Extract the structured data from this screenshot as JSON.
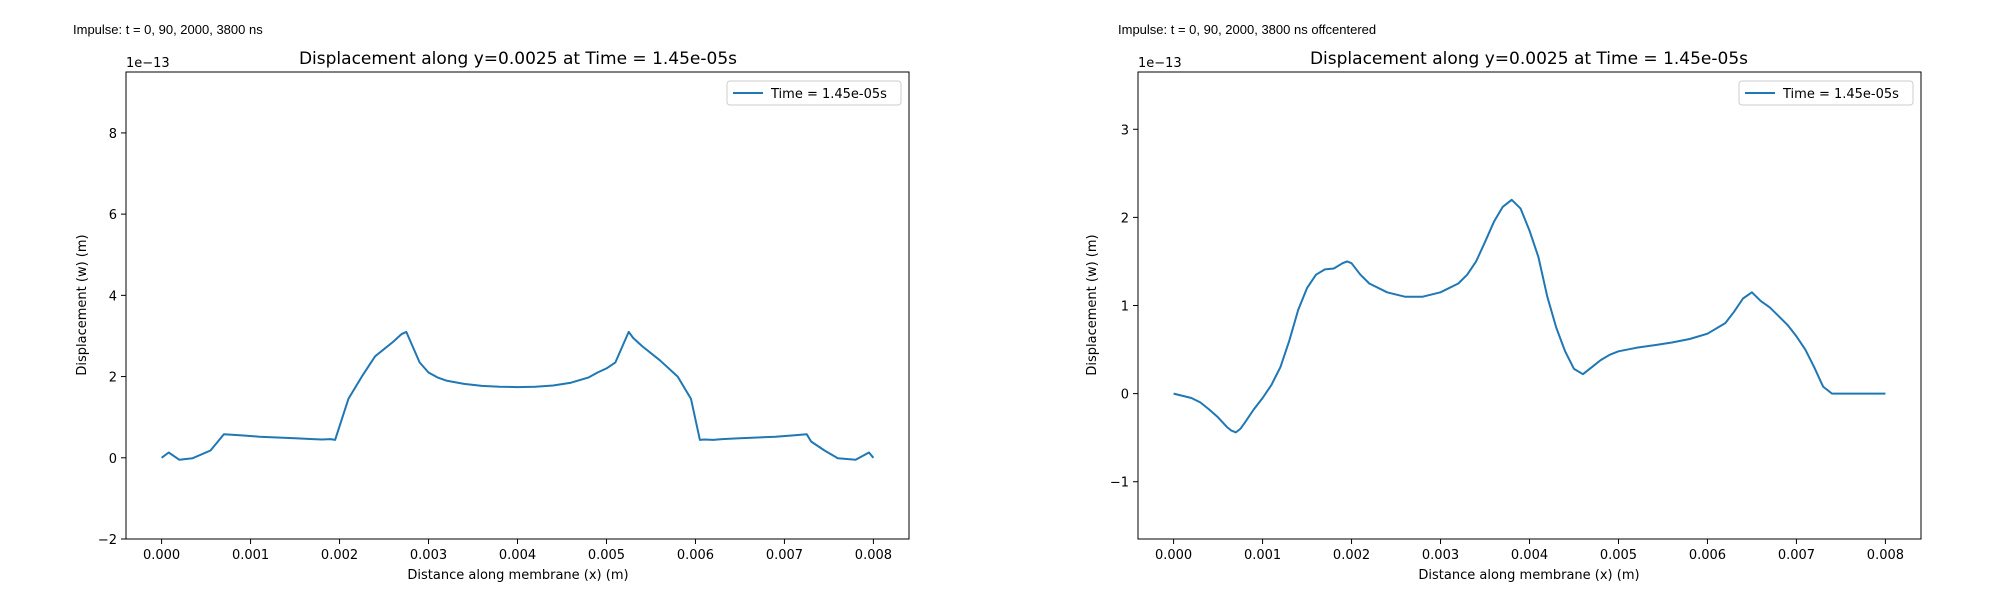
{
  "figure": {
    "panels": [
      {
        "annotation": "Impulse: t = 0, 90, 2000, 3800 ns",
        "tick_labels_x": [
          "0.000",
          "0.001",
          "0.002",
          "0.003",
          "0.004",
          "0.005",
          "0.006",
          "0.007",
          "0.008"
        ],
        "tick_labels_y": [
          "−2",
          "0",
          "2",
          "4",
          "6",
          "8"
        ],
        "offset_label": "1e−13"
      },
      {
        "annotation": "Impulse: t = 0, 90, 2000, 3800 ns offcentered",
        "tick_labels_x": [
          "0.000",
          "0.001",
          "0.002",
          "0.003",
          "0.004",
          "0.005",
          "0.006",
          "0.007",
          "0.008"
        ],
        "tick_labels_y": [
          "−1",
          "0",
          "1",
          "2",
          "3"
        ],
        "offset_label": "1e−13"
      }
    ]
  },
  "chart_data": [
    {
      "type": "line",
      "title": "Displacement along y=0.0025 at Time = 1.45e-05s",
      "xlabel": "Distance along membrane (x) (m)",
      "ylabel": "Displacement (w) (m)",
      "xlim": [
        -0.0004,
        0.0084
      ],
      "ylim": [
        -2e-13,
        9.5e-13
      ],
      "xticks": [
        0,
        0.001,
        0.002,
        0.003,
        0.004,
        0.005,
        0.006,
        0.007,
        0.008
      ],
      "yticks": [
        -2e-13,
        0,
        2e-13,
        4e-13,
        6e-13,
        8e-13
      ],
      "y_offset_text": "1e−13",
      "grid": false,
      "legend_position": "upper right",
      "line_color": "#1f77b4",
      "series": [
        {
          "name": "Time = 1.45e-05s",
          "x": [
            0,
            8e-05,
            0.0002,
            0.00035,
            0.00055,
            0.0007,
            0.0009,
            0.0011,
            0.0013,
            0.0015,
            0.0017,
            0.0018,
            0.0019,
            0.00195,
            0.0021,
            0.00225,
            0.0024,
            0.0026,
            0.0027,
            0.00275,
            0.0029,
            0.003,
            0.0031,
            0.0032,
            0.0034,
            0.0036,
            0.0038,
            0.004,
            0.0042,
            0.0044,
            0.0046,
            0.0048,
            0.0049,
            0.005,
            0.0051,
            0.00525,
            0.0053,
            0.0054,
            0.0056,
            0.0058,
            0.00595,
            0.00605,
            0.0061,
            0.0062,
            0.0063,
            0.0065,
            0.0067,
            0.0069,
            0.0071,
            0.00725,
            0.0073,
            0.00745,
            0.0076,
            0.0078,
            0.00795,
            0.008
          ],
          "values": [
            0.0,
            1.3e-14,
            -5e-15,
            -1e-15,
            1.8e-14,
            5.8e-14,
            5.5e-14,
            5.2e-14,
            5e-14,
            4.8e-14,
            4.6e-14,
            4.5e-14,
            4.6e-14,
            4.4e-14,
            1.45e-13,
            2e-13,
            2.5e-13,
            2.85e-13,
            3.05e-13,
            3.1e-13,
            2.35e-13,
            2.1e-13,
            1.98e-13,
            1.9e-13,
            1.82e-13,
            1.77e-13,
            1.75e-13,
            1.74e-13,
            1.75e-13,
            1.78e-13,
            1.85e-13,
            1.98e-13,
            2.1e-13,
            2.2e-13,
            2.35e-13,
            3.1e-13,
            2.95e-13,
            2.75e-13,
            2.4e-13,
            2e-13,
            1.45e-13,
            4.4e-14,
            4.5e-14,
            4.4e-14,
            4.6e-14,
            4.8e-14,
            5e-14,
            5.2e-14,
            5.5e-14,
            5.8e-14,
            4e-14,
            1.8e-14,
            -1e-15,
            -5e-15,
            1.3e-14,
            0.0
          ]
        }
      ]
    },
    {
      "type": "line",
      "title": "Displacement along y=0.0025 at Time = 1.45e-05s",
      "xlabel": "Distance along membrane (x) (m)",
      "ylabel": "Displacement (w) (m)",
      "xlim": [
        -0.0004,
        0.0084
      ],
      "ylim": [
        -1.65e-13,
        3.65e-13
      ],
      "xticks": [
        0,
        0.001,
        0.002,
        0.003,
        0.004,
        0.005,
        0.006,
        0.007,
        0.008
      ],
      "yticks": [
        -1e-13,
        0,
        1e-13,
        2e-13,
        3e-13
      ],
      "y_offset_text": "1e−13",
      "grid": false,
      "legend_position": "upper right",
      "line_color": "#1f77b4",
      "series": [
        {
          "name": "Time = 1.45e-05s",
          "x": [
            0,
            0.0002,
            0.0003,
            0.0004,
            0.0005,
            0.0006,
            0.00065,
            0.0007,
            0.00075,
            0.0008,
            0.0009,
            0.001,
            0.0011,
            0.00115,
            0.0012,
            0.0013,
            0.0014,
            0.0015,
            0.0016,
            0.0017,
            0.0018,
            0.0019,
            0.00195,
            0.002,
            0.0021,
            0.0022,
            0.0024,
            0.0026,
            0.0028,
            0.003,
            0.0032,
            0.0033,
            0.0034,
            0.0035,
            0.0036,
            0.0037,
            0.0038,
            0.0039,
            0.004,
            0.0041,
            0.0042,
            0.0043,
            0.0044,
            0.0045,
            0.0046,
            0.0047,
            0.0048,
            0.0049,
            0.005,
            0.0052,
            0.0054,
            0.0056,
            0.0058,
            0.006,
            0.0062,
            0.0063,
            0.0064,
            0.0065,
            0.0066,
            0.0067,
            0.0068,
            0.0069,
            0.007,
            0.0071,
            0.0072,
            0.0073,
            0.0074,
            0.0076,
            0.0078,
            0.008
          ],
          "values": [
            0.0,
            -5e-15,
            -1e-14,
            -1.8e-14,
            -2.7e-14,
            -3.8e-14,
            -4.2e-14,
            -4.4e-14,
            -4e-14,
            -3.3e-14,
            -1.8e-14,
            -5e-15,
            1e-14,
            2e-14,
            3e-14,
            6e-14,
            9.5e-14,
            1.2e-13,
            1.35e-13,
            1.41e-13,
            1.42e-13,
            1.48e-13,
            1.5e-13,
            1.48e-13,
            1.35e-13,
            1.25e-13,
            1.15e-13,
            1.1e-13,
            1.1e-13,
            1.15e-13,
            1.25e-13,
            1.35e-13,
            1.5e-13,
            1.72e-13,
            1.95e-13,
            2.12e-13,
            2.2e-13,
            2.1e-13,
            1.85e-13,
            1.55e-13,
            1.1e-13,
            7.5e-14,
            4.8e-14,
            2.8e-14,
            2.2e-14,
            3e-14,
            3.8e-14,
            4.4e-14,
            4.8e-14,
            5.2e-14,
            5.5e-14,
            5.8e-14,
            6.2e-14,
            6.8e-14,
            8e-14,
            9.3e-14,
            1.08e-13,
            1.15e-13,
            1.05e-13,
            9.8e-14,
            8.8e-14,
            7.8e-14,
            6.5e-14,
            5e-14,
            3e-14,
            8e-15,
            0.0,
            0.0,
            0.0,
            0.0
          ]
        }
      ]
    }
  ]
}
